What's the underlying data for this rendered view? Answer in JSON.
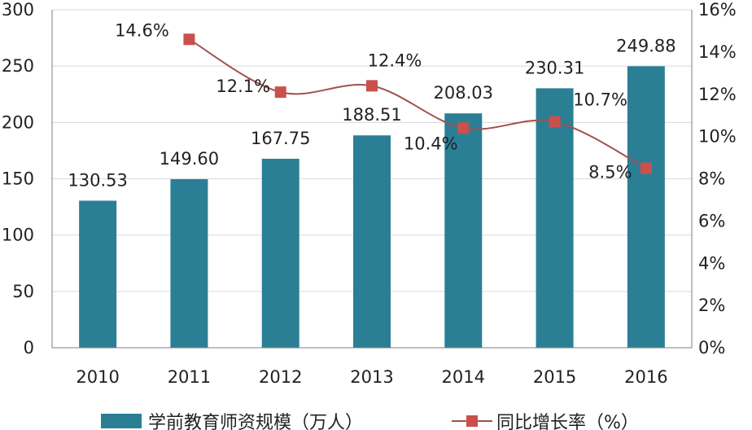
{
  "chart_data": {
    "type": "bar",
    "categories": [
      "2010",
      "2011",
      "2012",
      "2013",
      "2014",
      "2015",
      "2016"
    ],
    "series": [
      {
        "name": "学前教育师资规模（万人）",
        "type": "bar",
        "axis": "left",
        "values": [
          130.53,
          149.6,
          167.75,
          188.51,
          208.03,
          230.31,
          249.88
        ],
        "labels": [
          "130.53",
          "149.60",
          "167.75",
          "188.51",
          "208.03",
          "230.31",
          "249.88"
        ],
        "color": "#2a7f95"
      },
      {
        "name": "同比增长率（%）",
        "type": "line",
        "axis": "right",
        "x": [
          "2011",
          "2012",
          "2013",
          "2014",
          "2015",
          "2016"
        ],
        "values": [
          14.6,
          12.1,
          12.4,
          10.4,
          10.7,
          8.5
        ],
        "labels": [
          "14.6%",
          "12.1%",
          "12.4%",
          "10.4%",
          "10.7%",
          "8.5%"
        ],
        "line_color": "#a0524e",
        "marker_color": "#c9504b"
      }
    ],
    "y_left": {
      "range": [
        0,
        300
      ],
      "ticks": [
        "0",
        "50",
        "100",
        "150",
        "200",
        "250",
        "300"
      ]
    },
    "y_right": {
      "range": [
        0,
        16
      ],
      "ticks": [
        "0%",
        "2%",
        "4%",
        "6%",
        "8%",
        "10%",
        "12%",
        "14%",
        "16%"
      ]
    },
    "grid": true,
    "legend": "bottom"
  }
}
